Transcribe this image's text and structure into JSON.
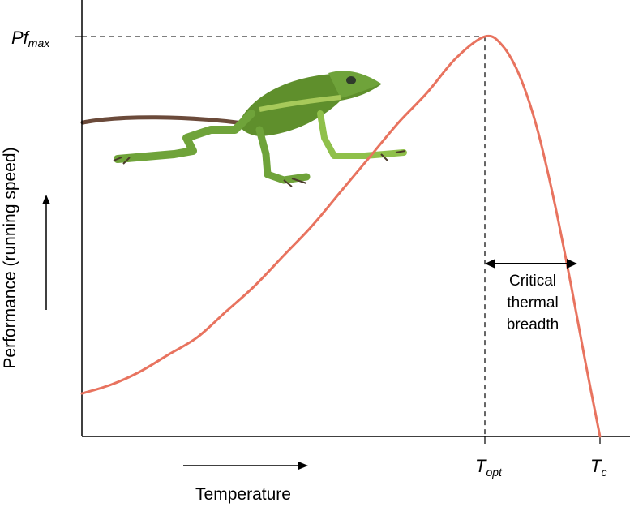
{
  "chart_data": {
    "type": "line",
    "title": "",
    "xlabel": "Temperature",
    "ylabel": "Performance (running speed)",
    "annotation": {
      "lines": [
        "Critical",
        "thermal",
        "breadth"
      ]
    },
    "x_ticks": [
      {
        "base": "T",
        "sub": "opt",
        "x": 0.7
      },
      {
        "base": "T",
        "sub": "c",
        "x": 0.9
      }
    ],
    "y_ticks": [
      {
        "base": "Pf",
        "sub": "max",
        "y": 0.93
      }
    ],
    "series": [
      {
        "color": "#e8735f",
        "x": [
          0.0,
          0.05,
          0.1,
          0.15,
          0.2,
          0.25,
          0.3,
          0.35,
          0.4,
          0.45,
          0.5,
          0.55,
          0.6,
          0.65,
          0.7,
          0.73,
          0.76,
          0.79,
          0.82,
          0.85,
          0.875,
          0.9
        ],
        "y": [
          0.1,
          0.12,
          0.15,
          0.19,
          0.23,
          0.29,
          0.35,
          0.42,
          0.49,
          0.57,
          0.65,
          0.73,
          0.8,
          0.88,
          0.93,
          0.91,
          0.84,
          0.72,
          0.55,
          0.35,
          0.17,
          0.0
        ]
      }
    ],
    "xlim": [
      0,
      1
    ],
    "ylim": [
      0,
      1
    ],
    "grid": false
  }
}
